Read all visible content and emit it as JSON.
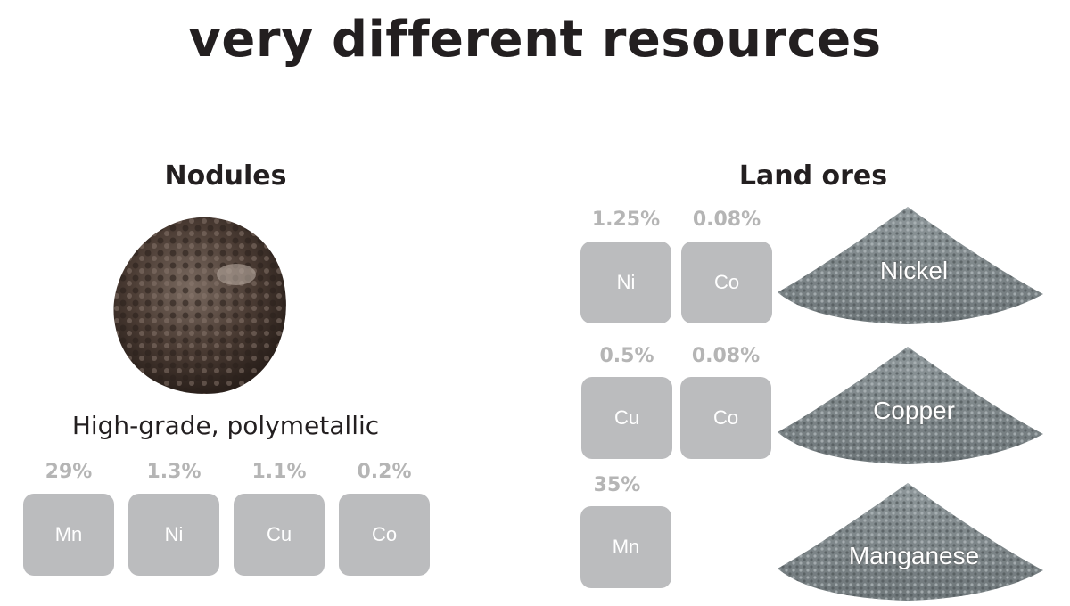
{
  "title": "very different resources",
  "nodules": {
    "heading": "Nodules",
    "description": "High-grade, polymetallic",
    "elements": [
      {
        "symbol": "Mn",
        "percent": "29%"
      },
      {
        "symbol": "Ni",
        "percent": "1.3%"
      },
      {
        "symbol": "Cu",
        "percent": "1.1%"
      },
      {
        "symbol": "Co",
        "percent": "0.2%"
      }
    ]
  },
  "land_ores": {
    "heading": "Land ores",
    "rows": [
      {
        "ore": "Nickel",
        "elements": [
          {
            "symbol": "Ni",
            "percent": "1.25%"
          },
          {
            "symbol": "Co",
            "percent": "0.08%"
          }
        ]
      },
      {
        "ore": "Copper",
        "elements": [
          {
            "symbol": "Cu",
            "percent": "0.5%"
          },
          {
            "symbol": "Co",
            "percent": "0.08%"
          }
        ]
      },
      {
        "ore": "Manganese",
        "elements": [
          {
            "symbol": "Mn",
            "percent": "35%"
          }
        ]
      }
    ]
  },
  "colors": {
    "box": "#bbbcbe",
    "percent": "#b5b5b5",
    "text": "#231f20"
  }
}
